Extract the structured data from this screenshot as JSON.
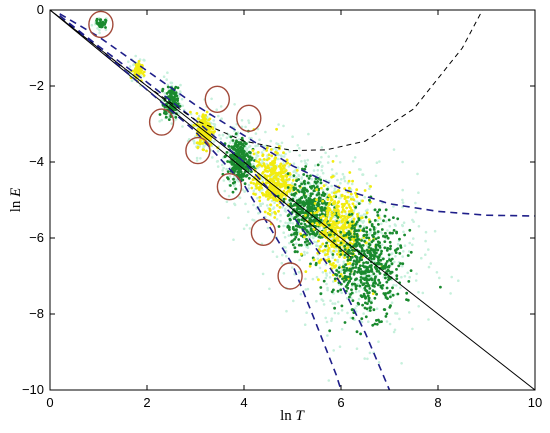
{
  "chart_data": {
    "type": "scatter",
    "title": "",
    "xlabel_parts": [
      "ln",
      "T"
    ],
    "ylabel_parts": [
      "ln",
      "E"
    ],
    "xlim": [
      0,
      10
    ],
    "ylim": [
      -10,
      0
    ],
    "x_ticks": [
      0,
      2,
      4,
      6,
      8,
      10
    ],
    "y_ticks": [
      0,
      -2,
      -4,
      -6,
      -8,
      -10
    ],
    "grid": false,
    "colors": {
      "green": "#1a8a2e",
      "yellow": "#f2ec10",
      "mint": "#c6f0dc",
      "navy": "#1f1f8a",
      "circle": "#a24a3a"
    },
    "clusters": [
      {
        "color": "green",
        "x": 1.05,
        "y": -0.35,
        "sx": 0.05,
        "sy": 0.06,
        "n": 40
      },
      {
        "color": "yellow",
        "x": 1.8,
        "y": -1.6,
        "sx": 0.05,
        "sy": 0.12,
        "n": 60
      },
      {
        "color": "green",
        "x": 2.5,
        "y": -2.45,
        "sx": 0.07,
        "sy": 0.2,
        "n": 130
      },
      {
        "color": "yellow",
        "x": 3.2,
        "y": -3.15,
        "sx": 0.09,
        "sy": 0.22,
        "n": 180
      },
      {
        "color": "green",
        "x": 3.9,
        "y": -3.95,
        "sx": 0.12,
        "sy": 0.28,
        "n": 260
      },
      {
        "color": "yellow",
        "x": 4.6,
        "y": -4.5,
        "sx": 0.2,
        "sy": 0.38,
        "n": 340
      },
      {
        "color": "green",
        "x": 5.35,
        "y": -5.3,
        "sx": 0.22,
        "sy": 0.45,
        "n": 420
      },
      {
        "color": "yellow",
        "x": 5.95,
        "y": -5.8,
        "sx": 0.28,
        "sy": 0.55,
        "n": 420
      },
      {
        "color": "green",
        "x": 6.55,
        "y": -6.7,
        "sx": 0.35,
        "sy": 0.65,
        "n": 520
      }
    ],
    "line_solid": {
      "x": [
        0,
        10
      ],
      "y": [
        0,
        -10
      ]
    },
    "line_solid_2": {
      "x": [
        0,
        6.2
      ],
      "y": [
        0,
        -6.5
      ]
    },
    "bounds_dashed_navy": [
      {
        "x": [
          0.2,
          1,
          2,
          3,
          4,
          5,
          6,
          7,
          8,
          9,
          10
        ],
        "y": [
          -0.1,
          -0.7,
          -1.6,
          -2.5,
          -3.3,
          -4.1,
          -4.7,
          -5.1,
          -5.3,
          -5.4,
          -5.42
        ]
      },
      {
        "x": [
          0.2,
          1,
          2,
          3,
          4,
          5,
          5.5,
          5.9,
          6.0
        ],
        "y": [
          -0.15,
          -1.0,
          -2.1,
          -3.2,
          -4.6,
          -6.7,
          -8.3,
          -9.6,
          -10.0
        ]
      },
      {
        "x": [
          0.2,
          1,
          2,
          3,
          4,
          5,
          6,
          6.5,
          7.0
        ],
        "y": [
          -0.15,
          -0.95,
          -1.9,
          -2.9,
          -4.0,
          -5.4,
          -7.2,
          -8.5,
          -10.0
        ]
      }
    ],
    "curve_dashed_black": {
      "x": [
        0.1,
        1,
        2,
        3,
        4,
        5,
        5.7,
        6.5,
        7.5,
        8.5,
        9.0,
        9.3
      ],
      "y": [
        -0.1,
        -1.0,
        -2.0,
        -2.9,
        -3.45,
        -3.7,
        -3.68,
        -3.45,
        -2.6,
        -1.0,
        0.2,
        0.4
      ]
    },
    "circles": [
      {
        "x": 1.05,
        "y": -0.38
      },
      {
        "x": 2.3,
        "y": -2.95
      },
      {
        "x": 3.45,
        "y": -2.35
      },
      {
        "x": 3.05,
        "y": -3.7
      },
      {
        "x": 4.1,
        "y": -2.85
      },
      {
        "x": 3.7,
        "y": -4.65
      },
      {
        "x": 4.4,
        "y": -5.85
      },
      {
        "x": 4.95,
        "y": -7.0
      }
    ]
  }
}
